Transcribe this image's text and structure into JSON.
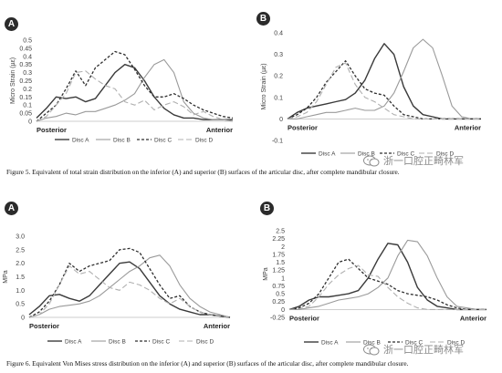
{
  "figure5": {
    "caption": "Figure 5. Equivalent of total strain distribution on the inferior (A) and superior (B) surfaces of the articular disc, after complete mandibular closure.",
    "chart_data": [
      {
        "panel_label": "A",
        "type": "line",
        "ylabel": "Micro Strain (µε)",
        "xlabel_left": "Posterior",
        "xlabel_right": "Anterior",
        "ylim": [
          0,
          0.5
        ],
        "yticks": [
          "0",
          "0.05",
          "0.1",
          "0.15",
          "0.2",
          "0.25",
          "0.3",
          "0.35",
          "0.4",
          "0.45",
          "0.5"
        ],
        "x": [
          0,
          1,
          2,
          3,
          4,
          5,
          6,
          7,
          8,
          9,
          10,
          11,
          12,
          13,
          14,
          15,
          16,
          17,
          18,
          19,
          20
        ],
        "series": [
          {
            "name": "Disc A",
            "values": [
              0.02,
              0.08,
              0.15,
              0.14,
              0.15,
              0.12,
              0.14,
              0.22,
              0.3,
              0.35,
              0.33,
              0.25,
              0.15,
              0.08,
              0.04,
              0.02,
              0.02,
              0.01,
              0.01,
              0.01,
              0.01
            ]
          },
          {
            "name": "Disc B",
            "values": [
              0.0,
              0.02,
              0.03,
              0.05,
              0.04,
              0.06,
              0.06,
              0.08,
              0.1,
              0.13,
              0.17,
              0.27,
              0.35,
              0.38,
              0.3,
              0.12,
              0.05,
              0.02,
              0.01,
              0.01,
              0.0
            ]
          },
          {
            "name": "Disc C",
            "values": [
              0.0,
              0.05,
              0.1,
              0.2,
              0.31,
              0.22,
              0.33,
              0.38,
              0.43,
              0.41,
              0.32,
              0.22,
              0.15,
              0.15,
              0.17,
              0.14,
              0.1,
              0.07,
              0.05,
              0.03,
              0.02
            ]
          },
          {
            "name": "Disc D",
            "values": [
              0.0,
              0.03,
              0.1,
              0.17,
              0.3,
              0.31,
              0.26,
              0.22,
              0.2,
              0.12,
              0.1,
              0.13,
              0.07,
              0.1,
              0.12,
              0.09,
              0.04,
              0.06,
              0.03,
              0.01,
              0.0
            ]
          }
        ]
      },
      {
        "panel_label": "B",
        "type": "line",
        "ylabel": "Micro Strain (µε)",
        "xlabel_left": "Posterior",
        "xlabel_right": "Anterior",
        "ylim": [
          -0.1,
          0.4
        ],
        "yticks": [
          "-0.1",
          "0",
          "0.1",
          "0.2",
          "0.3",
          "0.4"
        ],
        "x": [
          0,
          1,
          2,
          3,
          4,
          5,
          6,
          7,
          8,
          9,
          10,
          11,
          12,
          13,
          14,
          15,
          16,
          17,
          18,
          19,
          20
        ],
        "series": [
          {
            "name": "Disc A",
            "values": [
              0.0,
              0.03,
              0.05,
              0.06,
              0.07,
              0.08,
              0.09,
              0.12,
              0.18,
              0.28,
              0.35,
              0.3,
              0.15,
              0.06,
              0.02,
              0.01,
              0.0,
              0.0,
              0.0,
              0.0,
              0.0
            ]
          },
          {
            "name": "Disc B",
            "values": [
              0.0,
              0.0,
              0.01,
              0.02,
              0.03,
              0.03,
              0.04,
              0.05,
              0.04,
              0.04,
              0.06,
              0.12,
              0.22,
              0.33,
              0.37,
              0.33,
              0.2,
              0.06,
              0.01,
              0.0,
              0.0
            ]
          },
          {
            "name": "Disc C",
            "values": [
              0.0,
              0.02,
              0.05,
              0.1,
              0.17,
              0.22,
              0.27,
              0.2,
              0.14,
              0.12,
              0.11,
              0.06,
              0.02,
              0.01,
              0.0,
              0.0,
              0.0,
              0.0,
              0.0,
              0.0,
              0.0
            ]
          },
          {
            "name": "Disc D",
            "values": [
              0.0,
              0.01,
              0.03,
              0.08,
              0.16,
              0.24,
              0.26,
              0.16,
              0.1,
              0.08,
              0.05,
              0.02,
              0.01,
              0.0,
              0.0,
              0.0,
              0.0,
              0.0,
              0.0,
              0.0,
              0.0
            ]
          }
        ]
      }
    ]
  },
  "figure6": {
    "caption": "Figure 6. Equivalent Von Mises stress distribution on the inferior (A) and superior (B) surfaces of the articular disc, after complete mandibular closure.",
    "chart_data": [
      {
        "panel_label": "A",
        "type": "line",
        "ylabel": "MPa",
        "xlabel_left": "Posterior",
        "xlabel_right": "Anterior",
        "ylim": [
          0,
          3.0
        ],
        "yticks": [
          "0",
          "0.5",
          "1.0",
          "1.5",
          "2.0",
          "2.5",
          "3.0"
        ],
        "x": [
          0,
          1,
          2,
          3,
          4,
          5,
          6,
          7,
          8,
          9,
          10,
          11,
          12,
          13,
          14,
          15,
          16,
          17,
          18,
          19,
          20
        ],
        "series": [
          {
            "name": "Disc A",
            "values": [
              0.1,
              0.4,
              0.8,
              0.85,
              0.7,
              0.6,
              0.8,
              1.2,
              1.6,
              2.0,
              2.05,
              1.8,
              1.3,
              0.8,
              0.5,
              0.3,
              0.2,
              0.1,
              0.1,
              0.05,
              0.0
            ]
          },
          {
            "name": "Disc B",
            "values": [
              0.0,
              0.1,
              0.3,
              0.4,
              0.45,
              0.5,
              0.6,
              0.8,
              1.1,
              1.4,
              1.7,
              1.9,
              2.2,
              2.3,
              1.9,
              1.2,
              0.7,
              0.4,
              0.2,
              0.1,
              0.0
            ]
          },
          {
            "name": "Disc C",
            "values": [
              0.0,
              0.2,
              0.6,
              1.2,
              2.0,
              1.7,
              1.9,
              2.0,
              2.1,
              2.5,
              2.55,
              2.4,
              1.8,
              1.2,
              0.7,
              0.8,
              0.4,
              0.2,
              0.1,
              0.05,
              0.0
            ]
          },
          {
            "name": "Disc D",
            "values": [
              0.0,
              0.1,
              0.5,
              1.2,
              1.9,
              1.6,
              1.7,
              1.4,
              1.1,
              1.0,
              1.3,
              1.2,
              1.0,
              0.7,
              0.5,
              0.7,
              0.4,
              0.2,
              0.1,
              0.05,
              0.0
            ]
          }
        ]
      },
      {
        "panel_label": "B",
        "type": "line",
        "ylabel": "MPa",
        "xlabel_left": "Posterior",
        "xlabel_right": "Anterior",
        "ylim": [
          -0.25,
          2.5
        ],
        "yticks": [
          "-0.25",
          "0",
          "0.25",
          "0.5",
          "0.75",
          "1",
          "1.25",
          "1.5",
          "1.75",
          "2",
          "2.25",
          "2.5"
        ],
        "x": [
          0,
          1,
          2,
          3,
          4,
          5,
          6,
          7,
          8,
          9,
          10,
          11,
          12,
          13,
          14,
          15,
          16,
          17,
          18,
          19,
          20
        ],
        "series": [
          {
            "name": "Disc A",
            "values": [
              0.0,
              0.1,
              0.3,
              0.4,
              0.4,
              0.45,
              0.5,
              0.6,
              1.0,
              1.6,
              2.1,
              2.05,
              1.5,
              0.7,
              0.3,
              0.1,
              0.05,
              0.0,
              0.0,
              0.0,
              0.0
            ]
          },
          {
            "name": "Disc B",
            "values": [
              0.0,
              0.0,
              0.05,
              0.1,
              0.2,
              0.3,
              0.35,
              0.4,
              0.5,
              0.7,
              1.0,
              1.7,
              2.2,
              2.15,
              1.7,
              1.0,
              0.4,
              0.1,
              0.05,
              0.0,
              0.0
            ]
          },
          {
            "name": "Disc C",
            "values": [
              0.0,
              0.05,
              0.2,
              0.5,
              1.0,
              1.5,
              1.6,
              1.3,
              1.0,
              0.9,
              0.8,
              0.6,
              0.5,
              0.45,
              0.4,
              0.3,
              0.15,
              0.05,
              0.0,
              0.0,
              0.0
            ]
          },
          {
            "name": "Disc D",
            "values": [
              0.0,
              0.02,
              0.1,
              0.4,
              0.8,
              1.1,
              1.3,
              1.4,
              1.1,
              1.05,
              0.7,
              0.4,
              0.2,
              0.05,
              0.0,
              0.0,
              0.0,
              0.0,
              0.0,
              0.0,
              0.0
            ]
          }
        ]
      }
    ]
  },
  "watermark": {
    "text": "浙一口腔正畸林军",
    "icon": "wechat-icon"
  },
  "colors": {
    "disc_a": "#3a3a3a",
    "disc_b": "#9a9a9a",
    "disc_c": "#2e2e2e",
    "disc_d": "#b0b0b0",
    "axis": "#bdbdbd",
    "text": "#404040",
    "badge": "#2b2b2b",
    "watermark": "#8c8c8c"
  }
}
